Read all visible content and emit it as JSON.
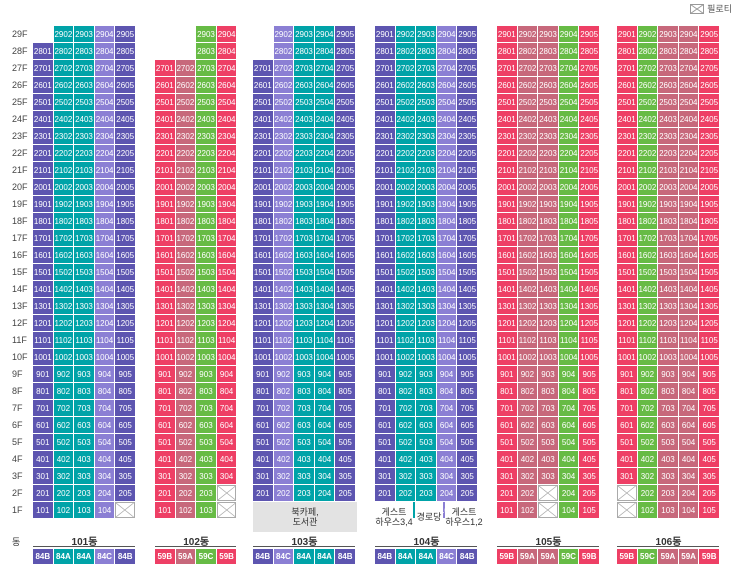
{
  "legend": {
    "label": "필로티"
  },
  "header_label": "동",
  "floors": [
    "29F",
    "28F",
    "27F",
    "26F",
    "25F",
    "24F",
    "23F",
    "22F",
    "21F",
    "20F",
    "19F",
    "18F",
    "17F",
    "16F",
    "15F",
    "14F",
    "13F",
    "12F",
    "11F",
    "10F",
    "9F",
    "8F",
    "7F",
    "6F",
    "5F",
    "4F",
    "3F",
    "2F",
    "1F"
  ],
  "colors": {
    "84B": "#5d55b0",
    "84A": "#00a3a8",
    "84C": "#8b7fd4",
    "59B": "#ee3f65",
    "59A": "#c7687b",
    "59C": "#67bb45",
    "empty": "#ffffff",
    "facility": "#e3e3e3"
  },
  "buildings": [
    {
      "name": "101동",
      "types": [
        "84B",
        "84A",
        "84A",
        "84C",
        "84B"
      ],
      "units": [
        1,
        2,
        3,
        4,
        5
      ],
      "top_floor": [
        28,
        29,
        29,
        29,
        29
      ],
      "pilotis": [
        [
          1,
          5
        ]
      ],
      "missing": []
    },
    {
      "name": "102동",
      "types": [
        "59B",
        "59A",
        "59C",
        "59B"
      ],
      "units": [
        1,
        2,
        3,
        4
      ],
      "top_floor": [
        27,
        27,
        29,
        29
      ],
      "pilotis": [
        [
          1,
          4
        ],
        [
          2,
          4
        ]
      ],
      "missing": []
    },
    {
      "name": "103동",
      "types": [
        "84B",
        "84C",
        "84A",
        "84A",
        "84B"
      ],
      "units": [
        1,
        2,
        3,
        4,
        5
      ],
      "top_floor": [
        27,
        29,
        29,
        29,
        29
      ],
      "pilotis": [],
      "missing": [
        [
          1,
          1
        ]
      ]
    },
    {
      "name": "104동",
      "types": [
        "84B",
        "84A",
        "84A",
        "84C",
        "84B"
      ],
      "units": [
        1,
        2,
        3,
        4,
        5
      ],
      "top_floor": [
        29,
        29,
        29,
        29,
        29
      ],
      "pilotis": [],
      "missing": []
    },
    {
      "name": "105동",
      "types": [
        "59B",
        "59A",
        "59A",
        "59C",
        "59B"
      ],
      "units": [
        1,
        2,
        3,
        4,
        5
      ],
      "top_floor": [
        29,
        29,
        29,
        29,
        29
      ],
      "pilotis": [
        [
          1,
          3
        ],
        [
          2,
          3
        ]
      ],
      "missing": []
    },
    {
      "name": "106동",
      "types": [
        "59B",
        "59C",
        "59A",
        "59A",
        "59B"
      ],
      "units": [
        1,
        2,
        3,
        4,
        5
      ],
      "top_floor": [
        29,
        29,
        29,
        29,
        29
      ],
      "pilotis": [
        [
          1,
          1
        ],
        [
          2,
          1
        ]
      ],
      "missing": []
    }
  ],
  "facilities": [
    {
      "label": "북카페,\n도서관"
    },
    {
      "label": "게스트\n하우스3,4"
    },
    {
      "label": "경로당"
    },
    {
      "label": "게스트\n하우스1,2"
    }
  ]
}
